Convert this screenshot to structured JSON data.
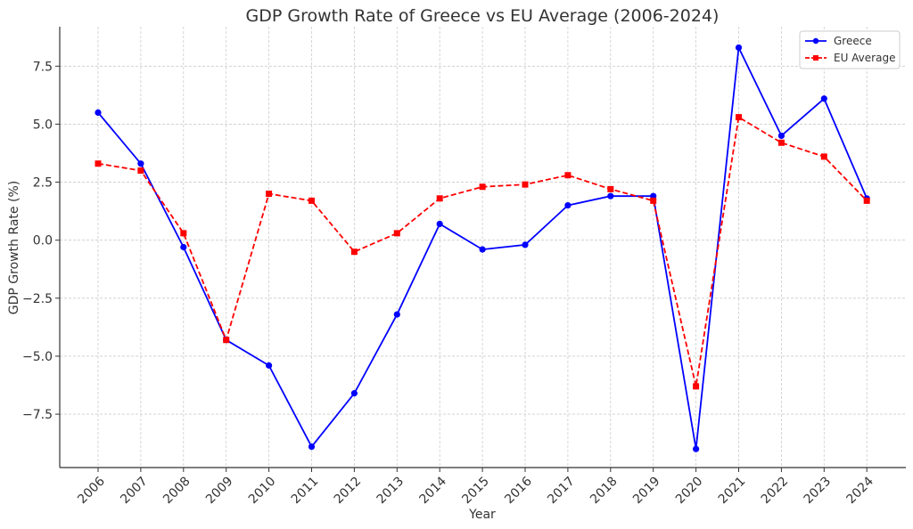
{
  "chart_data": {
    "type": "line",
    "title": "GDP Growth Rate of Greece vs EU Average (2006-2024)",
    "xlabel": "Year",
    "ylabel": "GDP Growth Rate (%)",
    "categories": [
      "2006",
      "2007",
      "2008",
      "2009",
      "2010",
      "2011",
      "2012",
      "2013",
      "2014",
      "2015",
      "2016",
      "2017",
      "2018",
      "2019",
      "2020",
      "2021",
      "2022",
      "2023",
      "2024"
    ],
    "ylim": [
      -9.8,
      9.2
    ],
    "yticks": [
      -7.5,
      -5.0,
      -2.5,
      0.0,
      2.5,
      5.0,
      7.5
    ],
    "ytick_labels": [
      "−7.5",
      "−5.0",
      "−2.5",
      "0.0",
      "2.5",
      "5.0",
      "7.5"
    ],
    "grid": true,
    "legend_position": "top-right",
    "series": [
      {
        "name": "Greece",
        "color": "#0000ff",
        "line_style": "solid",
        "marker": "circle",
        "values": [
          5.5,
          3.3,
          -0.3,
          -4.3,
          -5.4,
          -8.9,
          -6.6,
          -3.2,
          0.7,
          -0.4,
          -0.2,
          1.5,
          1.9,
          1.9,
          -9.0,
          8.3,
          4.5,
          6.1,
          1.8
        ]
      },
      {
        "name": "EU Average",
        "color": "#ff0000",
        "line_style": "dashed",
        "marker": "square",
        "values": [
          3.3,
          3.0,
          0.3,
          -4.3,
          2.0,
          1.7,
          -0.5,
          0.3,
          1.8,
          2.3,
          2.4,
          2.8,
          2.2,
          1.7,
          -6.3,
          5.3,
          4.2,
          3.6,
          1.7
        ]
      }
    ]
  }
}
